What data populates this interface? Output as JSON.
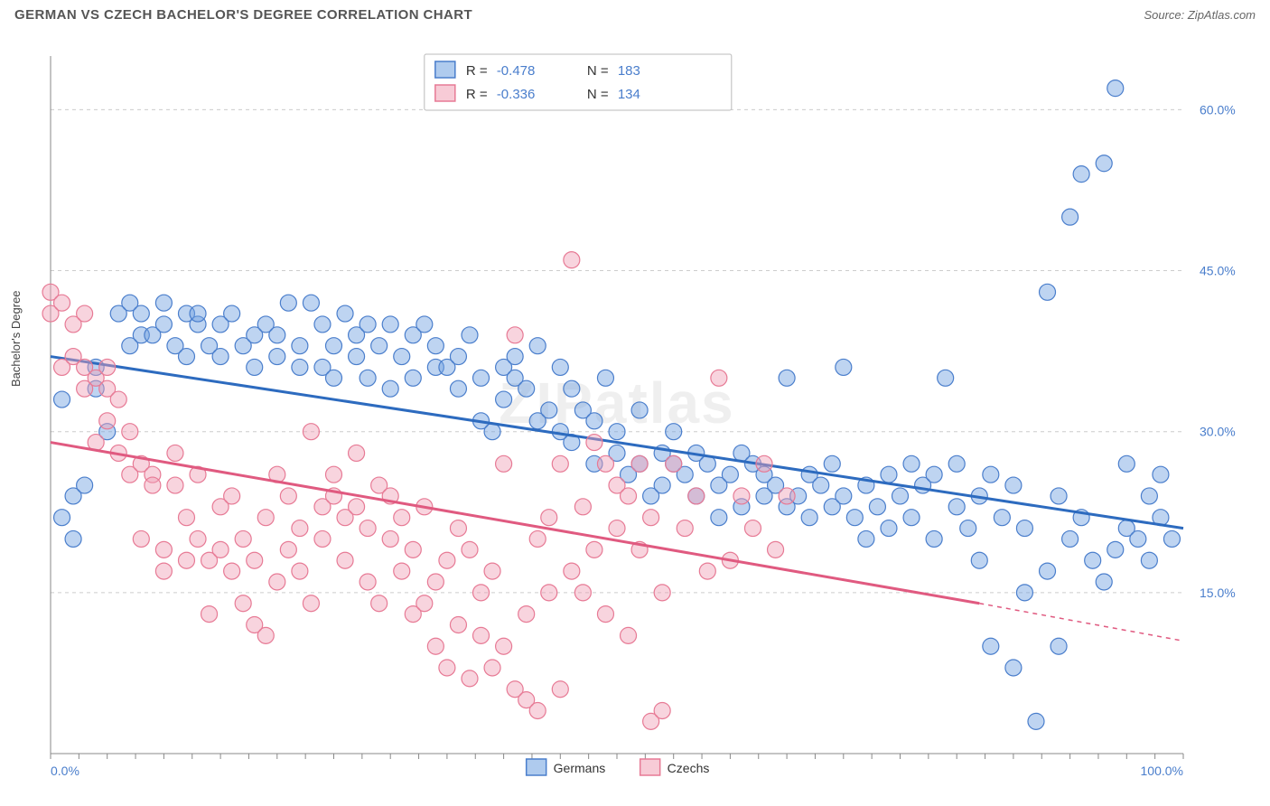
{
  "title": "GERMAN VS CZECH BACHELOR'S DEGREE CORRELATION CHART",
  "source": "Source: ZipAtlas.com",
  "watermark": "ZIPatlas",
  "chart": {
    "type": "scatter",
    "ylabel": "Bachelor's Degree",
    "xlim": [
      0,
      100
    ],
    "ylim": [
      0,
      65
    ],
    "xticks": [
      {
        "v": 0,
        "label": "0.0%"
      },
      {
        "v": 100,
        "label": "100.0%"
      }
    ],
    "yticks": [
      {
        "v": 15,
        "label": "15.0%"
      },
      {
        "v": 30,
        "label": "30.0%"
      },
      {
        "v": 45,
        "label": "45.0%"
      },
      {
        "v": 60,
        "label": "60.0%"
      }
    ],
    "xminor_step": 2.5,
    "grid_color": "#cccccc",
    "background_color": "#ffffff",
    "marker_radius": 9,
    "marker_opacity": 0.45,
    "series": [
      {
        "name": "Germans",
        "color": "#6ea0e0",
        "stroke": "#4a7ecc",
        "line_color": "#2d6bbf",
        "line_width": 3,
        "stats": {
          "R": "-0.478",
          "N": "183"
        },
        "trend": {
          "x1": 0,
          "y1": 37,
          "x2": 100,
          "y2": 21,
          "dashed_from": 100
        },
        "points": [
          [
            1,
            22
          ],
          [
            1,
            33
          ],
          [
            2,
            24
          ],
          [
            2,
            20
          ],
          [
            3,
            25
          ],
          [
            4,
            34
          ],
          [
            4,
            36
          ],
          [
            5,
            30
          ],
          [
            6,
            41
          ],
          [
            7,
            38
          ],
          [
            7,
            42
          ],
          [
            8,
            39
          ],
          [
            8,
            41
          ],
          [
            9,
            39
          ],
          [
            10,
            40
          ],
          [
            10,
            42
          ],
          [
            11,
            38
          ],
          [
            12,
            41
          ],
          [
            12,
            37
          ],
          [
            13,
            40
          ],
          [
            13,
            41
          ],
          [
            14,
            38
          ],
          [
            15,
            37
          ],
          [
            15,
            40
          ],
          [
            16,
            41
          ],
          [
            17,
            38
          ],
          [
            18,
            39
          ],
          [
            18,
            36
          ],
          [
            19,
            40
          ],
          [
            20,
            37
          ],
          [
            20,
            39
          ],
          [
            21,
            42
          ],
          [
            22,
            38
          ],
          [
            22,
            36
          ],
          [
            23,
            42
          ],
          [
            24,
            36
          ],
          [
            24,
            40
          ],
          [
            25,
            38
          ],
          [
            25,
            35
          ],
          [
            26,
            41
          ],
          [
            27,
            39
          ],
          [
            27,
            37
          ],
          [
            28,
            40
          ],
          [
            28,
            35
          ],
          [
            29,
            38
          ],
          [
            30,
            40
          ],
          [
            30,
            34
          ],
          [
            31,
            37
          ],
          [
            32,
            39
          ],
          [
            32,
            35
          ],
          [
            33,
            40
          ],
          [
            34,
            36
          ],
          [
            34,
            38
          ],
          [
            35,
            36
          ],
          [
            36,
            37
          ],
          [
            36,
            34
          ],
          [
            37,
            39
          ],
          [
            38,
            35
          ],
          [
            38,
            31
          ],
          [
            39,
            30
          ],
          [
            40,
            36
          ],
          [
            40,
            33
          ],
          [
            41,
            37
          ],
          [
            41,
            35
          ],
          [
            42,
            34
          ],
          [
            43,
            31
          ],
          [
            43,
            38
          ],
          [
            44,
            32
          ],
          [
            45,
            30
          ],
          [
            45,
            36
          ],
          [
            46,
            29
          ],
          [
            46,
            34
          ],
          [
            47,
            32
          ],
          [
            48,
            31
          ],
          [
            48,
            27
          ],
          [
            49,
            35
          ],
          [
            50,
            30
          ],
          [
            50,
            28
          ],
          [
            51,
            26
          ],
          [
            52,
            27
          ],
          [
            52,
            32
          ],
          [
            53,
            24
          ],
          [
            54,
            28
          ],
          [
            54,
            25
          ],
          [
            55,
            27
          ],
          [
            55,
            30
          ],
          [
            56,
            26
          ],
          [
            57,
            24
          ],
          [
            57,
            28
          ],
          [
            58,
            27
          ],
          [
            59,
            25
          ],
          [
            59,
            22
          ],
          [
            60,
            26
          ],
          [
            61,
            28
          ],
          [
            61,
            23
          ],
          [
            62,
            27
          ],
          [
            63,
            24
          ],
          [
            63,
            26
          ],
          [
            64,
            25
          ],
          [
            65,
            23
          ],
          [
            65,
            35
          ],
          [
            66,
            24
          ],
          [
            67,
            22
          ],
          [
            67,
            26
          ],
          [
            68,
            25
          ],
          [
            69,
            23
          ],
          [
            69,
            27
          ],
          [
            70,
            24
          ],
          [
            70,
            36
          ],
          [
            71,
            22
          ],
          [
            72,
            25
          ],
          [
            72,
            20
          ],
          [
            73,
            23
          ],
          [
            74,
            26
          ],
          [
            74,
            21
          ],
          [
            75,
            24
          ],
          [
            76,
            27
          ],
          [
            76,
            22
          ],
          [
            77,
            25
          ],
          [
            78,
            20
          ],
          [
            78,
            26
          ],
          [
            79,
            35
          ],
          [
            80,
            23
          ],
          [
            80,
            27
          ],
          [
            81,
            21
          ],
          [
            82,
            24
          ],
          [
            82,
            18
          ],
          [
            83,
            26
          ],
          [
            83,
            10
          ],
          [
            84,
            22
          ],
          [
            85,
            25
          ],
          [
            85,
            8
          ],
          [
            86,
            21
          ],
          [
            86,
            15
          ],
          [
            87,
            3
          ],
          [
            88,
            17
          ],
          [
            88,
            43
          ],
          [
            89,
            24
          ],
          [
            89,
            10
          ],
          [
            90,
            20
          ],
          [
            90,
            50
          ],
          [
            91,
            22
          ],
          [
            91,
            54
          ],
          [
            92,
            18
          ],
          [
            93,
            55
          ],
          [
            93,
            16
          ],
          [
            94,
            62
          ],
          [
            94,
            19
          ],
          [
            95,
            21
          ],
          [
            95,
            27
          ],
          [
            96,
            20
          ],
          [
            97,
            24
          ],
          [
            97,
            18
          ],
          [
            98,
            22
          ],
          [
            98,
            26
          ],
          [
            99,
            20
          ]
        ]
      },
      {
        "name": "Czechs",
        "color": "#f0a0b5",
        "stroke": "#e77a95",
        "line_color": "#e05a80",
        "line_width": 3,
        "stats": {
          "R": "-0.336",
          "N": "134"
        },
        "trend": {
          "x1": 0,
          "y1": 29,
          "x2": 82,
          "y2": 14,
          "dashed_from": 82,
          "x3": 100,
          "y3": 10.5
        },
        "points": [
          [
            0,
            43
          ],
          [
            0,
            41
          ],
          [
            1,
            42
          ],
          [
            1,
            36
          ],
          [
            2,
            40
          ],
          [
            2,
            37
          ],
          [
            3,
            41
          ],
          [
            3,
            34
          ],
          [
            3,
            36
          ],
          [
            4,
            35
          ],
          [
            4,
            29
          ],
          [
            5,
            34
          ],
          [
            5,
            31
          ],
          [
            5,
            36
          ],
          [
            6,
            28
          ],
          [
            6,
            33
          ],
          [
            7,
            26
          ],
          [
            7,
            30
          ],
          [
            8,
            27
          ],
          [
            8,
            20
          ],
          [
            9,
            26
          ],
          [
            9,
            25
          ],
          [
            10,
            17
          ],
          [
            10,
            19
          ],
          [
            11,
            25
          ],
          [
            11,
            28
          ],
          [
            12,
            18
          ],
          [
            12,
            22
          ],
          [
            13,
            20
          ],
          [
            13,
            26
          ],
          [
            14,
            18
          ],
          [
            14,
            13
          ],
          [
            15,
            19
          ],
          [
            15,
            23
          ],
          [
            16,
            17
          ],
          [
            16,
            24
          ],
          [
            17,
            20
          ],
          [
            17,
            14
          ],
          [
            18,
            12
          ],
          [
            18,
            18
          ],
          [
            19,
            22
          ],
          [
            19,
            11
          ],
          [
            20,
            26
          ],
          [
            20,
            16
          ],
          [
            21,
            19
          ],
          [
            21,
            24
          ],
          [
            22,
            21
          ],
          [
            22,
            17
          ],
          [
            23,
            30
          ],
          [
            23,
            14
          ],
          [
            24,
            23
          ],
          [
            24,
            20
          ],
          [
            25,
            26
          ],
          [
            25,
            24
          ],
          [
            26,
            22
          ],
          [
            26,
            18
          ],
          [
            27,
            23
          ],
          [
            27,
            28
          ],
          [
            28,
            16
          ],
          [
            28,
            21
          ],
          [
            29,
            25
          ],
          [
            29,
            14
          ],
          [
            30,
            24
          ],
          [
            30,
            20
          ],
          [
            31,
            17
          ],
          [
            31,
            22
          ],
          [
            32,
            13
          ],
          [
            32,
            19
          ],
          [
            33,
            14
          ],
          [
            33,
            23
          ],
          [
            34,
            10
          ],
          [
            34,
            16
          ],
          [
            35,
            8
          ],
          [
            35,
            18
          ],
          [
            36,
            12
          ],
          [
            36,
            21
          ],
          [
            37,
            19
          ],
          [
            37,
            7
          ],
          [
            38,
            15
          ],
          [
            38,
            11
          ],
          [
            39,
            8
          ],
          [
            39,
            17
          ],
          [
            40,
            10
          ],
          [
            40,
            27
          ],
          [
            41,
            6
          ],
          [
            41,
            39
          ],
          [
            42,
            13
          ],
          [
            42,
            5
          ],
          [
            43,
            20
          ],
          [
            43,
            4
          ],
          [
            44,
            15
          ],
          [
            44,
            22
          ],
          [
            45,
            6
          ],
          [
            45,
            27
          ],
          [
            46,
            17
          ],
          [
            46,
            46
          ],
          [
            47,
            23
          ],
          [
            47,
            15
          ],
          [
            48,
            29
          ],
          [
            48,
            19
          ],
          [
            49,
            27
          ],
          [
            49,
            13
          ],
          [
            50,
            25
          ],
          [
            50,
            21
          ],
          [
            51,
            24
          ],
          [
            51,
            11
          ],
          [
            52,
            27
          ],
          [
            52,
            19
          ],
          [
            53,
            3
          ],
          [
            53,
            22
          ],
          [
            54,
            4
          ],
          [
            54,
            15
          ],
          [
            55,
            27
          ],
          [
            56,
            21
          ],
          [
            57,
            24
          ],
          [
            58,
            17
          ],
          [
            59,
            35
          ],
          [
            60,
            18
          ],
          [
            61,
            24
          ],
          [
            62,
            21
          ],
          [
            63,
            27
          ],
          [
            64,
            19
          ],
          [
            65,
            24
          ]
        ]
      }
    ],
    "footer_legend": [
      {
        "label": "Germans",
        "color": "#6ea0e0",
        "stroke": "#4a7ecc"
      },
      {
        "label": "Czechs",
        "color": "#f0a0b5",
        "stroke": "#e77a95"
      }
    ]
  }
}
